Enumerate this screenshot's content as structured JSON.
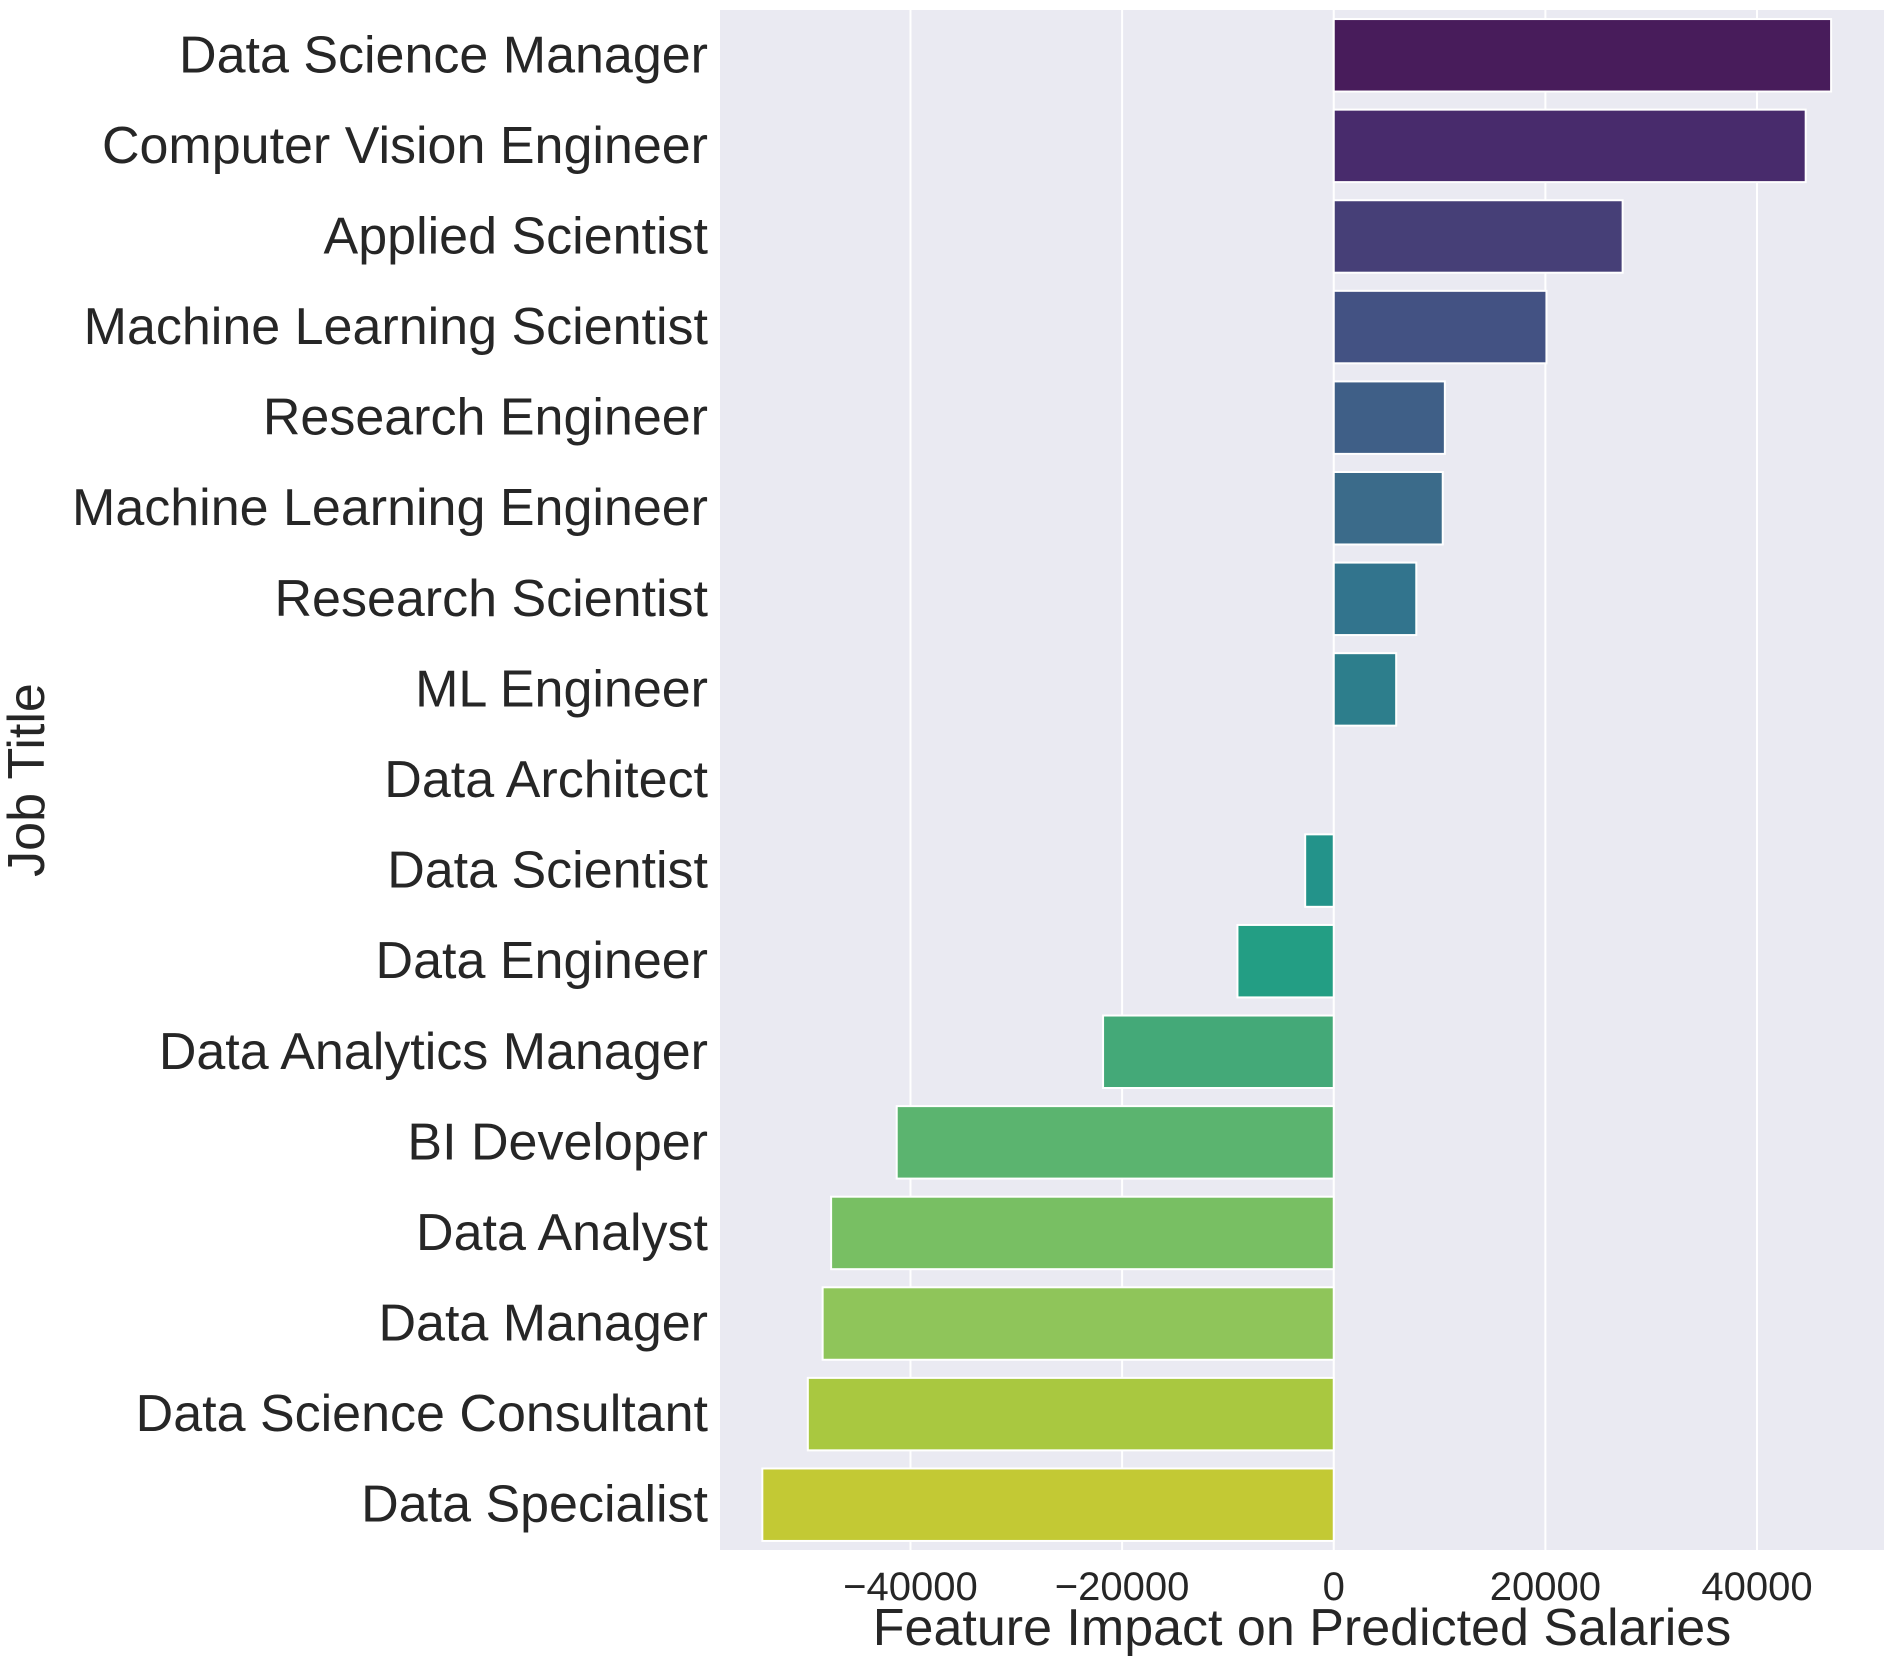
{
  "chart_data": {
    "type": "bar",
    "orientation": "horizontal",
    "title": "",
    "xlabel": "Feature Impact on Predicted Salaries",
    "ylabel": "Job Title",
    "xlim": [
      -58000,
      52000
    ],
    "xticks": [
      -40000,
      -20000,
      0,
      20000,
      40000
    ],
    "xtick_labels": [
      "−40000",
      "−20000",
      "0",
      "20000",
      "40000"
    ],
    "grid": true,
    "background": "#eaeaf2",
    "categories": [
      "Data Science Manager",
      "Computer Vision Engineer",
      "Applied Scientist",
      "Machine Learning Scientist",
      "Research Engineer",
      "Machine Learning Engineer",
      "Research Scientist",
      "ML Engineer",
      "Data Architect",
      "Data Scientist",
      "Data Engineer",
      "Data Analytics Manager",
      "BI Developer",
      "Data Analyst",
      "Data Manager",
      "Data Science Consultant",
      "Data Specialist"
    ],
    "values": [
      47000,
      44600,
      27300,
      20100,
      10500,
      10300,
      7800,
      5900,
      0,
      -2700,
      -9100,
      -21800,
      -41300,
      -47500,
      -48300,
      -49700,
      -54000
    ],
    "colors": [
      "#481c5b",
      "#482b6c",
      "#463f77",
      "#435283",
      "#3f5f87",
      "#3b6b8a",
      "#32748d",
      "#2d7e8c",
      "#27898d",
      "#23938a",
      "#239e84",
      "#44a978",
      "#5bb46f",
      "#78bf63",
      "#8fc55a",
      "#a9c840",
      "#c3c934"
    ]
  }
}
